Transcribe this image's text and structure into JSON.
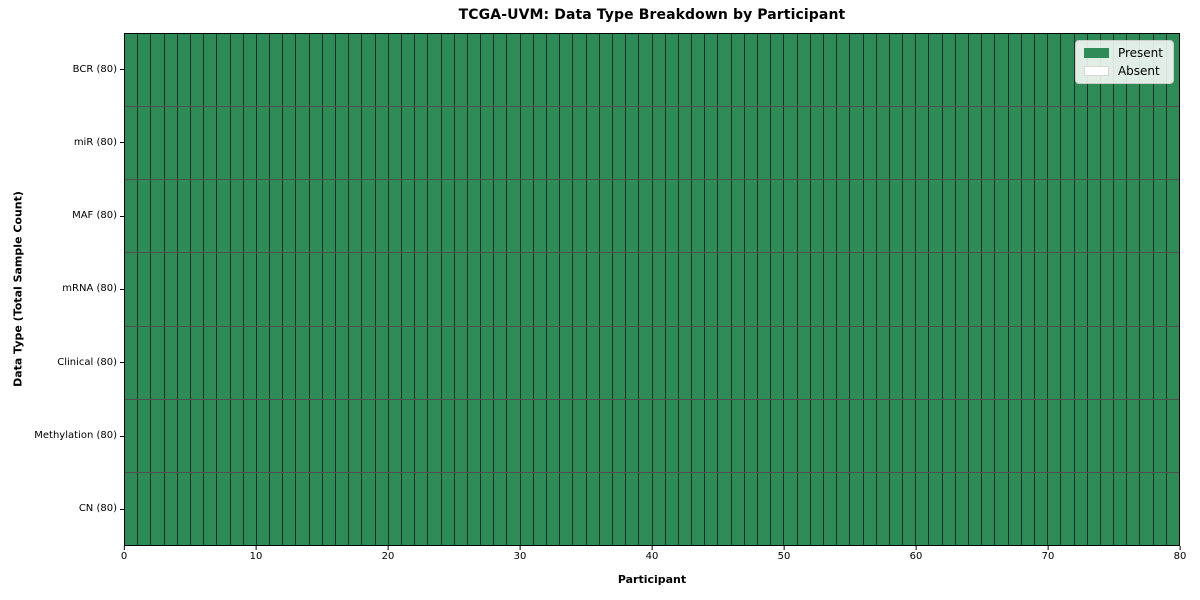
{
  "chart_data": {
    "type": "heatmap",
    "title": "TCGA-UVM: Data Type Breakdown by Participant",
    "xlabel": "Participant",
    "ylabel": "Data Type (Total Sample Count)",
    "xlim": [
      0,
      80
    ],
    "x_ticks": [
      0,
      10,
      20,
      30,
      40,
      50,
      60,
      70,
      80
    ],
    "n_participants": 80,
    "rows": [
      {
        "label": "BCR (80)",
        "total": 80,
        "present_count": 80,
        "absent_count": 0
      },
      {
        "label": "miR (80)",
        "total": 80,
        "present_count": 80,
        "absent_count": 0
      },
      {
        "label": "MAF (80)",
        "total": 80,
        "present_count": 80,
        "absent_count": 0
      },
      {
        "label": "mRNA (80)",
        "total": 80,
        "present_count": 80,
        "absent_count": 0
      },
      {
        "label": "Clinical (80)",
        "total": 80,
        "present_count": 80,
        "absent_count": 0
      },
      {
        "label": "Methylation (80)",
        "total": 80,
        "present_count": 80,
        "absent_count": 0
      },
      {
        "label": "CN (80)",
        "total": 80,
        "present_count": 80,
        "absent_count": 0
      }
    ],
    "legend": {
      "position": "upper right",
      "entries": [
        {
          "label": "Present",
          "color": "#2e8b57"
        },
        {
          "label": "Absent",
          "color": "#ffffff"
        }
      ]
    },
    "colors": {
      "present": "#2e8b57",
      "absent": "#ffffff",
      "cell_edge": "#141414",
      "axes_edge": "#000000",
      "legend_border": "#cccccc"
    },
    "grid": false
  }
}
